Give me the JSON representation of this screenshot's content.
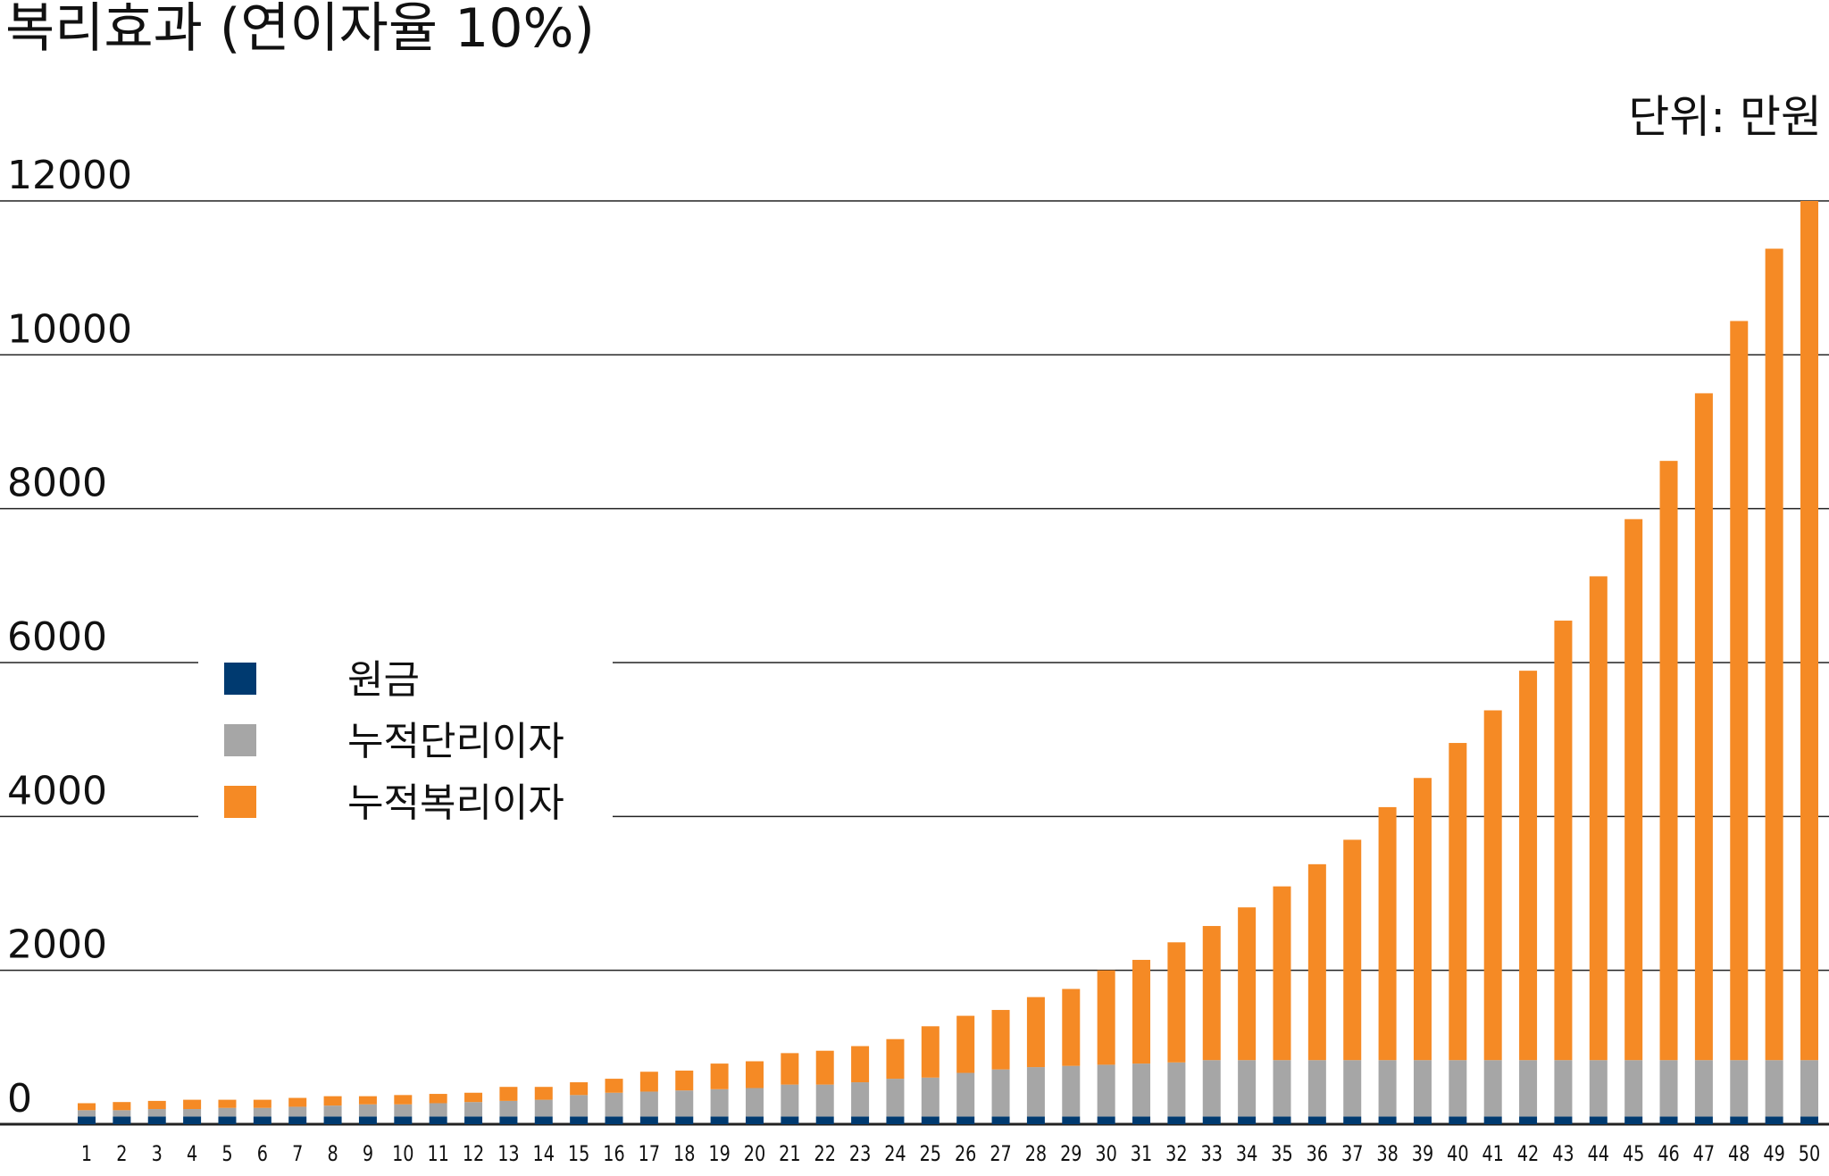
{
  "chart_data": {
    "type": "stacked_bar",
    "title": "복리효과 (연이자율 10%)",
    "unit_label": "단위: 만원",
    "categories": [
      "1",
      "2",
      "3",
      "4",
      "5",
      "6",
      "7",
      "8",
      "9",
      "10",
      "11",
      "12",
      "13",
      "14",
      "15",
      "16",
      "17",
      "18",
      "19",
      "20",
      "21",
      "22",
      "23",
      "24",
      "25",
      "26",
      "27",
      "28",
      "29",
      "30",
      "31",
      "32",
      "33",
      "34",
      "35",
      "36",
      "37",
      "38",
      "39",
      "40",
      "41",
      "42",
      "43",
      "44",
      "45",
      "46",
      "47",
      "48",
      "49",
      "50"
    ],
    "series": [
      {
        "name": "원금",
        "color": "#003a70",
        "values": [
          100,
          100,
          100,
          100,
          100,
          100,
          100,
          100,
          100,
          100,
          100,
          100,
          100,
          100,
          100,
          100,
          100,
          100,
          100,
          100,
          100,
          100,
          100,
          100,
          100,
          100,
          100,
          100,
          100,
          100,
          100,
          100,
          100,
          100,
          100,
          100,
          100,
          100,
          100,
          100,
          100,
          100,
          100,
          100,
          100,
          100,
          100,
          100,
          100,
          100
        ]
      },
      {
        "name": "누적단리이자",
        "color": "#a6a6a6",
        "values": [
          82,
          82,
          97,
          97,
          112,
          112,
          127,
          142,
          158,
          158,
          173,
          188,
          203,
          218,
          279,
          309,
          324,
          339,
          355,
          370,
          415,
          415,
          445,
          491,
          506,
          567,
          612,
          642,
          658,
          673,
          688,
          703,
          733,
          733,
          733,
          733,
          733,
          733,
          733,
          733,
          733,
          733,
          733,
          733,
          733,
          733,
          733,
          733,
          733,
          733
        ]
      },
      {
        "name": "누적복리이자",
        "color": "#f58a25",
        "values": [
          91,
          106,
          106,
          121,
          106,
          106,
          115,
          122,
          106,
          121,
          121,
          121,
          182,
          167,
          166,
          182,
          258,
          258,
          333,
          348,
          409,
          440,
          470,
          515,
          667,
          742,
          773,
          910,
          1000,
          1227,
          1348,
          1561,
          1743,
          1985,
          2258,
          2546,
          2864,
          3288,
          3667,
          4122,
          4546,
          5061,
          5712,
          6288,
          7031,
          7788,
          8667,
          9606,
          10546,
          11167
        ]
      }
    ],
    "ylim": [
      0,
      12000
    ],
    "yticks": [
      0,
      2000,
      4000,
      6000,
      8000,
      10000,
      12000
    ],
    "grid": true
  }
}
